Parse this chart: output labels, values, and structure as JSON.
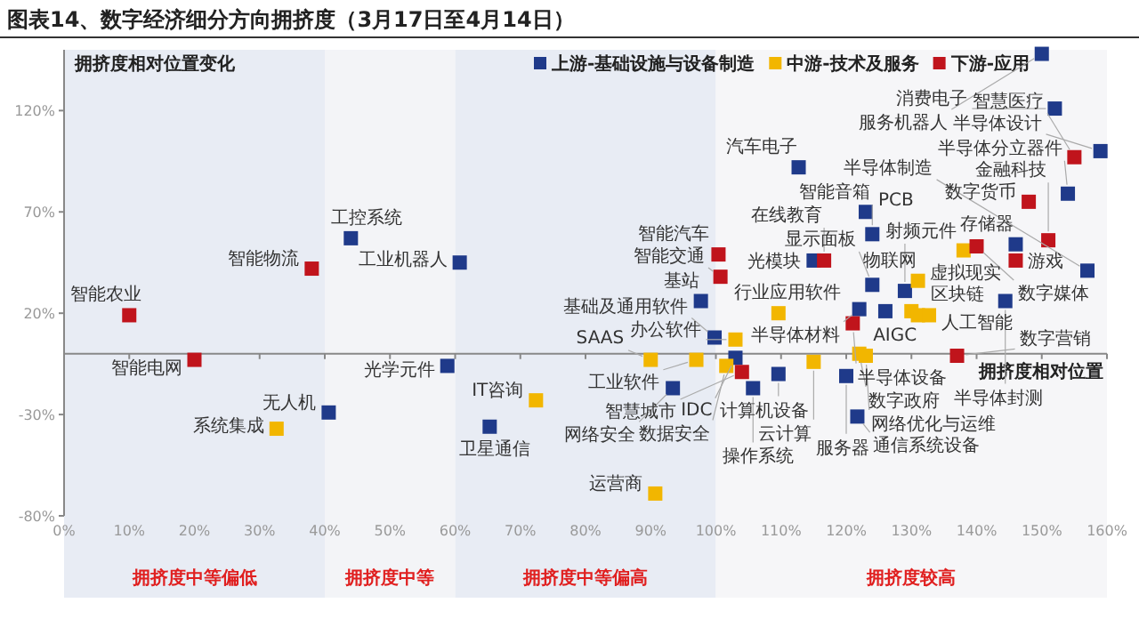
{
  "chart_data": {
    "type": "scatter",
    "title": "图表14、数字经济细分方向拥挤度（3月17日至4月14日）",
    "xlabel": "拥挤度相对位置",
    "ylabel": "拥挤度相对位置变化",
    "xlim": [
      0,
      160
    ],
    "ylim": [
      -80,
      150
    ],
    "xticks": [
      {
        "value": 0,
        "label": "0%"
      },
      {
        "value": 10,
        "label": "10%"
      },
      {
        "value": 20,
        "label": "20%"
      },
      {
        "value": 30,
        "label": "30%"
      },
      {
        "value": 40,
        "label": "40%"
      },
      {
        "value": 50,
        "label": "50%"
      },
      {
        "value": 60,
        "label": "60%"
      },
      {
        "value": 70,
        "label": "70%"
      },
      {
        "value": 80,
        "label": "80%"
      },
      {
        "value": 90,
        "label": "90%"
      },
      {
        "value": 100,
        "label": "100%"
      },
      {
        "value": 110,
        "label": "110%"
      },
      {
        "value": 120,
        "label": "120%"
      },
      {
        "value": 130,
        "label": "130%"
      },
      {
        "value": 140,
        "label": "140%"
      },
      {
        "value": 150,
        "label": "150%"
      },
      {
        "value": 160,
        "label": "160%"
      }
    ],
    "yticks": [
      {
        "value": -80,
        "label": "-80%"
      },
      {
        "value": -30,
        "label": "-30%"
      },
      {
        "value": 20,
        "label": "20%"
      },
      {
        "value": 70,
        "label": "70%"
      },
      {
        "value": 120,
        "label": "120%"
      }
    ],
    "marker": "square",
    "legend": "top",
    "grid": false,
    "bands": [
      {
        "axis": "x",
        "from": 0,
        "to": 40,
        "label": "拥挤度中等偏低",
        "color": "#e8ecf4"
      },
      {
        "axis": "x",
        "from": 40,
        "to": 60,
        "label": "拥挤度中等",
        "color": "#f3f4f7"
      },
      {
        "axis": "x",
        "from": 60,
        "to": 100,
        "label": "拥挤度中等偏高",
        "color": "#e8ecf4"
      },
      {
        "axis": "x",
        "from": 100,
        "to": 160,
        "label": "拥挤度较高",
        "color": "#f6f6f8"
      }
    ],
    "series": [
      {
        "name": "上游-基础设施与设备制造",
        "color": "#1f3a8a",
        "x": [
          150,
          152,
          159,
          154,
          112.7,
          123,
          124,
          146,
          157,
          115,
          124,
          129,
          122,
          126,
          97.7,
          144.4,
          99.8,
          103,
          109.6,
          120,
          121.7,
          93.4,
          105.7,
          44,
          60.7,
          58.8,
          40.6,
          65.3
        ],
        "values": [
          148,
          121,
          100,
          79,
          92,
          70,
          59,
          54,
          41,
          46,
          34,
          31,
          22,
          21,
          26,
          26,
          8,
          -2,
          -10,
          -11,
          -31,
          -17,
          -17,
          57,
          45,
          -6,
          -29,
          -36
        ]
      },
      {
        "name": "中游-技术及服务",
        "color": "#f2b600",
        "x": [
          138,
          131,
          109.6,
          130,
          131,
          132.7,
          103,
          90,
          97,
          101.6,
          115,
          122,
          123,
          90.7,
          32.6,
          72.4
        ],
        "values": [
          51,
          36,
          20,
          21,
          19,
          19,
          7,
          -3,
          -3,
          -6,
          -4,
          0,
          -1,
          -69,
          -37,
          -23
        ]
      },
      {
        "name": "下游-应用",
        "color": "#c0141c",
        "x": [
          155,
          148,
          140,
          151,
          146,
          116.6,
          100.4,
          100.7,
          121,
          104,
          137,
          10,
          20,
          38
        ],
        "values": [
          97,
          75,
          53,
          56,
          46,
          46,
          49,
          38,
          15,
          -9,
          -1,
          19,
          -3,
          42
        ]
      }
    ],
    "annotations": [
      {
        "text": "服务机器人",
        "x": 150,
        "y": 148
      },
      {
        "text": "消费电子",
        "x": 152,
        "y": 121
      },
      {
        "text": "半导体设计",
        "x": 159,
        "y": 100
      },
      {
        "text": "半导体分立器件",
        "x": 154,
        "y": 79
      },
      {
        "text": "汽车电子",
        "x": 112.7,
        "y": 92
      },
      {
        "text": "PCB",
        "x": 123,
        "y": 70
      },
      {
        "text": "智能音箱",
        "x": 124,
        "y": 59
      },
      {
        "text": "存储器",
        "x": 146,
        "y": 54
      },
      {
        "text": "半导体制造",
        "x": 157,
        "y": 41
      },
      {
        "text": "光模块",
        "x": 115,
        "y": 46
      },
      {
        "text": "显示面板",
        "x": 124,
        "y": 34
      },
      {
        "text": "射频元件",
        "x": 129,
        "y": 31
      },
      {
        "text": "半导体材料",
        "x": 122,
        "y": 22
      },
      {
        "text": "基站",
        "x": 97.7,
        "y": 26
      },
      {
        "text": "半导体封测",
        "x": 144.4,
        "y": 26
      },
      {
        "text": "基础及通用软件",
        "x": 99.8,
        "y": 8
      },
      {
        "text": "IDC",
        "x": 103,
        "y": -2
      },
      {
        "text": "计算机设备",
        "x": 109.6,
        "y": -10
      },
      {
        "text": "服务器",
        "x": 120,
        "y": -11
      },
      {
        "text": "通信系统设备",
        "x": 121.7,
        "y": -31
      },
      {
        "text": "网络安全",
        "x": 93.4,
        "y": -17
      },
      {
        "text": "操作系统",
        "x": 105.7,
        "y": -17
      },
      {
        "text": "工控系统",
        "x": 44,
        "y": 57
      },
      {
        "text": "工业机器人",
        "x": 60.7,
        "y": 45
      },
      {
        "text": "光学元件",
        "x": 58.8,
        "y": -6
      },
      {
        "text": "无人机",
        "x": 40.6,
        "y": -29
      },
      {
        "text": "卫星通信",
        "x": 65.3,
        "y": -36
      },
      {
        "text": "虚拟现实",
        "x": 138,
        "y": 51
      },
      {
        "text": "物联网",
        "x": 131,
        "y": 36
      },
      {
        "text": "行业应用软件",
        "x": 109.6,
        "y": 20
      },
      {
        "text": "AIGC",
        "x": 130,
        "y": 21
      },
      {
        "text": "区块链",
        "x": 131,
        "y": 19
      },
      {
        "text": "人工智能",
        "x": 132.7,
        "y": 19
      },
      {
        "text": "办公软件",
        "x": 103,
        "y": 7
      },
      {
        "text": "SAAS",
        "x": 90,
        "y": -3
      },
      {
        "text": "工业软件",
        "x": 97,
        "y": -3
      },
      {
        "text": "数据安全",
        "x": 101.6,
        "y": -6
      },
      {
        "text": "云计算",
        "x": 115,
        "y": -4
      },
      {
        "text": "数字政府",
        "x": 122,
        "y": 0
      },
      {
        "text": "网络优化与运维",
        "x": 123,
        "y": -1
      },
      {
        "text": "运营商",
        "x": 90.7,
        "y": -69
      },
      {
        "text": "系统集成",
        "x": 32.6,
        "y": -37
      },
      {
        "text": "IT咨询",
        "x": 72.4,
        "y": -23
      },
      {
        "text": "智慧医疗",
        "x": 155,
        "y": 97
      },
      {
        "text": "数字货币",
        "x": 148,
        "y": 75
      },
      {
        "text": "数字媒体",
        "x": 140,
        "y": 53
      },
      {
        "text": "金融科技",
        "x": 151,
        "y": 56
      },
      {
        "text": "游戏",
        "x": 146,
        "y": 46
      },
      {
        "text": "在线教育",
        "x": 116.6,
        "y": 46
      },
      {
        "text": "智能汽车",
        "x": 100.4,
        "y": 49
      },
      {
        "text": "智能交通",
        "x": 100.7,
        "y": 38
      },
      {
        "text": "半导体设备",
        "x": 121,
        "y": 15
      },
      {
        "text": "智慧城市",
        "x": 104,
        "y": -9
      },
      {
        "text": "数字营销",
        "x": 137,
        "y": -1
      },
      {
        "text": "智能农业",
        "x": 10,
        "y": 19
      },
      {
        "text": "智能电网",
        "x": 20,
        "y": -3
      },
      {
        "text": "智能物流",
        "x": 38,
        "y": 42
      }
    ]
  }
}
